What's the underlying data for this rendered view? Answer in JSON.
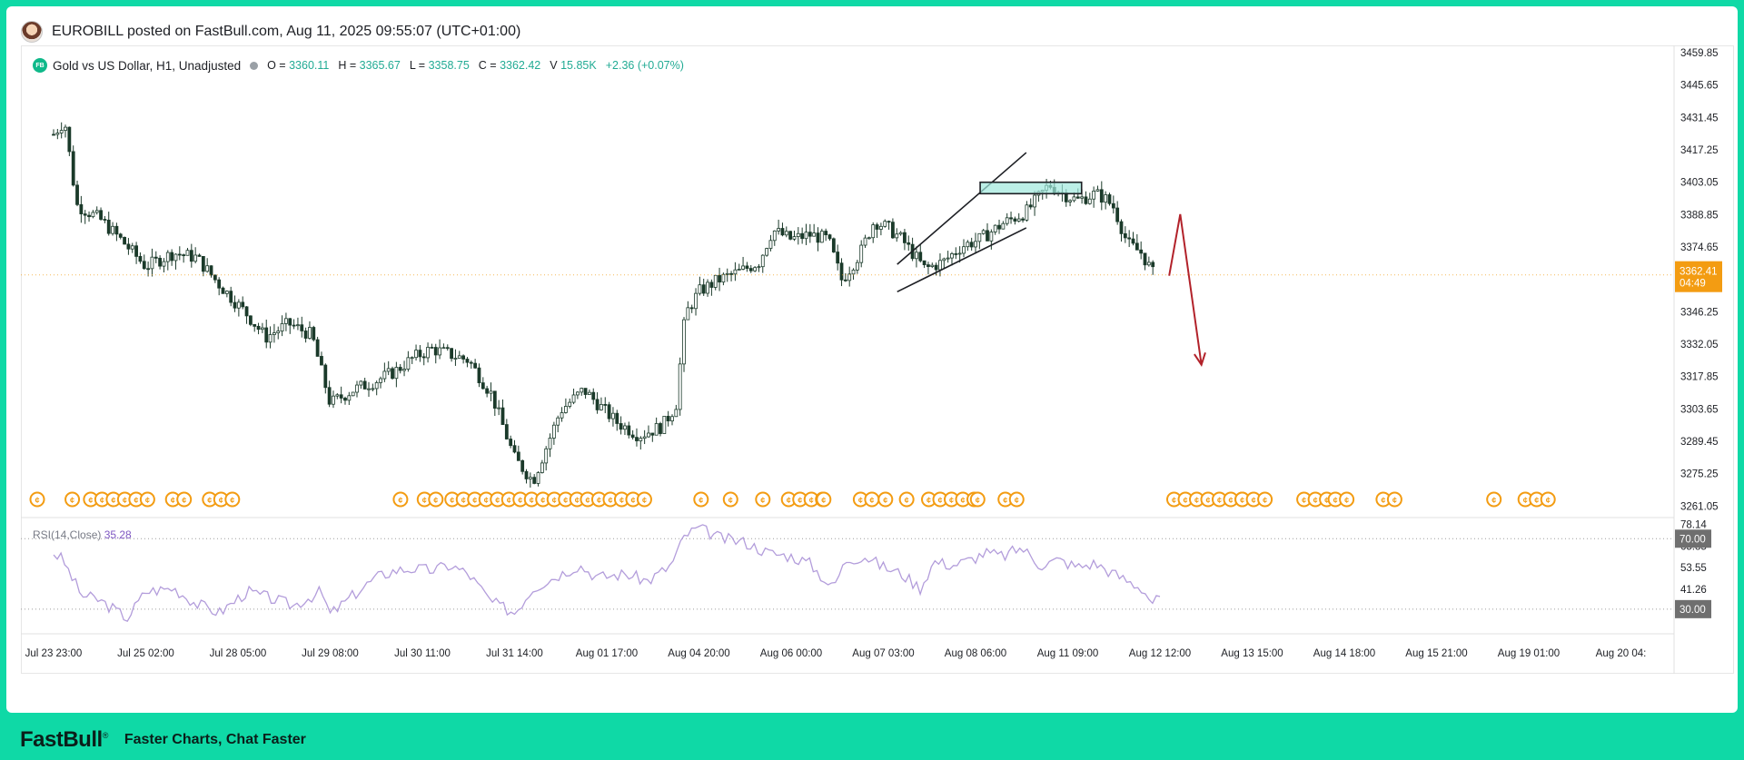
{
  "post": {
    "title": "EUROBILL posted on FastBull.com,   Aug 11, 2025 09:55:07 (UTC+01:00)"
  },
  "legend": {
    "badge": "FB",
    "symbol": "Gold vs US Dollar, H1, Unadjusted",
    "open_label": "O =",
    "open": "3360.11",
    "high_label": "H =",
    "high": "3365.67",
    "low_label": "L =",
    "low": "3358.75",
    "close_label": "C =",
    "close": "3362.42",
    "volume_label": "V",
    "volume": "15.85K",
    "change": "+2.36 (+0.07%)"
  },
  "price_tag": {
    "price": "3362.41",
    "countdown": "04:49"
  },
  "rsi": {
    "label": "RSI(14,Close)",
    "value": "35.28"
  },
  "footer": {
    "brand": "FastBull",
    "reg": "®",
    "slogan": "Faster Charts, Chat Faster"
  },
  "colors": {
    "up": "#ffffff",
    "down": "#1b3a2a",
    "zone": "#9fe8dd",
    "arrow": "#b2222a",
    "rsi_line": "#b39ddb",
    "price_tag": "#f39c12"
  },
  "chart_data": [
    {
      "type": "candlestick",
      "title": "Gold vs US Dollar, H1, Unadjusted",
      "ylim": [
        3256,
        3463
      ],
      "y_ticks": [
        3459.85,
        3445.65,
        3431.45,
        3417.25,
        3403.05,
        3388.85,
        3374.65,
        3346.25,
        3332.05,
        3317.85,
        3303.65,
        3289.45,
        3275.25,
        3261.05
      ],
      "x_labels": [
        "Jul 23 23:00",
        "Jul 25 02:00",
        "Jul 28 05:00",
        "Jul 29 08:00",
        "Jul 30 11:00",
        "Jul 31 14:00",
        "Aug 01 17:00",
        "Aug 04 20:00",
        "Aug 06 00:00",
        "Aug 07 03:00",
        "Aug 08 06:00",
        "Aug 11 09:00",
        "Aug 12 12:00",
        "Aug 13 15:00",
        "Aug 14 18:00",
        "Aug 15 21:00",
        "Aug 19 01:00",
        "Aug 20 04:"
      ],
      "last_price": 3362.41,
      "close_path": [
        [
          0,
          3424
        ],
        [
          0.12,
          3430
        ],
        [
          0.25,
          3393
        ],
        [
          0.5,
          3387
        ],
        [
          0.75,
          3377
        ],
        [
          1,
          3366
        ],
        [
          1.3,
          3372
        ],
        [
          1.55,
          3370
        ],
        [
          1.8,
          3358
        ],
        [
          2.1,
          3345
        ],
        [
          2.3,
          3335
        ],
        [
          2.55,
          3341
        ],
        [
          2.8,
          3336
        ],
        [
          3.0,
          3306
        ],
        [
          3.25,
          3312
        ],
        [
          3.5,
          3316
        ],
        [
          3.7,
          3320
        ],
        [
          3.9,
          3326
        ],
        [
          4.1,
          3330
        ],
        [
          4.5,
          3325
        ],
        [
          4.75,
          3310
        ],
        [
          5.0,
          3282
        ],
        [
          5.2,
          3272
        ],
        [
          5.5,
          3303
        ],
        [
          5.75,
          3312
        ],
        [
          6.1,
          3298
        ],
        [
          6.35,
          3292
        ],
        [
          6.6,
          3296
        ],
        [
          6.75,
          3305
        ],
        [
          6.85,
          3345
        ],
        [
          7.0,
          3355
        ],
        [
          7.2,
          3360
        ],
        [
          7.45,
          3364
        ],
        [
          7.65,
          3368
        ],
        [
          7.8,
          3382
        ],
        [
          8.0,
          3378
        ],
        [
          8.2,
          3380
        ],
        [
          8.4,
          3378
        ],
        [
          8.55,
          3360
        ],
        [
          8.75,
          3372
        ],
        [
          8.9,
          3386
        ],
        [
          9.05,
          3383
        ],
        [
          9.2,
          3378
        ],
        [
          9.45,
          3365
        ],
        [
          9.65,
          3368
        ],
        [
          9.85,
          3375
        ],
        [
          10.05,
          3378
        ],
        [
          10.3,
          3385
        ],
        [
          10.55,
          3390
        ],
        [
          10.8,
          3402
        ],
        [
          10.95,
          3398
        ],
        [
          11.1,
          3395
        ],
        [
          11.3,
          3398
        ],
        [
          11.4,
          3396
        ],
        [
          11.5,
          3392
        ],
        [
          11.65,
          3376
        ],
        [
          11.8,
          3372
        ],
        [
          11.94,
          3362
        ]
      ],
      "annotations": [
        {
          "type": "ascending-channel",
          "from": [
            9.15,
            3367
          ],
          "to": [
            10.55,
            3416
          ],
          "lower_from": [
            9.15,
            3355
          ],
          "lower_to": [
            10.55,
            3383
          ]
        },
        {
          "type": "resistance-zone",
          "y_range": [
            3398,
            3403
          ],
          "x_range": [
            10.05,
            11.15
          ]
        },
        {
          "type": "forecast-arrow",
          "points": [
            [
              12.1,
              3362
            ],
            [
              12.22,
              3389
            ],
            [
              12.45,
              3323
            ]
          ]
        }
      ]
    },
    {
      "type": "line",
      "title": "RSI(14,Close)",
      "ylim": [
        16,
        82
      ],
      "y_ticks": [
        78.14,
        65.85,
        53.55,
        41.26
      ],
      "levels": [
        70.0,
        30.0
      ],
      "last_value": 35.28,
      "path": [
        [
          0,
          62
        ],
        [
          0.1,
          58
        ],
        [
          0.3,
          38
        ],
        [
          0.5,
          35
        ],
        [
          0.8,
          25
        ],
        [
          1.0,
          40
        ],
        [
          1.3,
          42
        ],
        [
          1.55,
          33
        ],
        [
          1.8,
          28
        ],
        [
          2.1,
          40
        ],
        [
          2.3,
          37
        ],
        [
          2.6,
          32
        ],
        [
          2.9,
          40
        ],
        [
          3.0,
          27
        ],
        [
          3.3,
          40
        ],
        [
          3.5,
          48
        ],
        [
          3.7,
          52
        ],
        [
          3.9,
          53
        ],
        [
          4.1,
          52
        ],
        [
          4.3,
          55
        ],
        [
          4.5,
          50
        ],
        [
          4.75,
          34
        ],
        [
          5.0,
          28
        ],
        [
          5.2,
          42
        ],
        [
          5.5,
          50
        ],
        [
          5.7,
          55
        ],
        [
          5.9,
          48
        ],
        [
          6.2,
          50
        ],
        [
          6.45,
          46
        ],
        [
          6.7,
          55
        ],
        [
          6.85,
          72
        ],
        [
          7.0,
          76
        ],
        [
          7.25,
          70
        ],
        [
          7.5,
          68
        ],
        [
          7.75,
          62
        ],
        [
          8.0,
          60
        ],
        [
          8.2,
          56
        ],
        [
          8.45,
          42
        ],
        [
          8.6,
          58
        ],
        [
          8.8,
          60
        ],
        [
          9.0,
          54
        ],
        [
          9.2,
          50
        ],
        [
          9.4,
          42
        ],
        [
          9.55,
          57
        ],
        [
          9.75,
          55
        ],
        [
          9.95,
          58
        ],
        [
          10.1,
          62
        ],
        [
          10.3,
          60
        ],
        [
          10.5,
          65
        ],
        [
          10.7,
          55
        ],
        [
          10.9,
          58
        ],
        [
          11.1,
          54
        ],
        [
          11.3,
          56
        ],
        [
          11.5,
          50
        ],
        [
          11.65,
          46
        ],
        [
          11.8,
          42
        ],
        [
          11.92,
          34
        ],
        [
          12.0,
          36
        ]
      ]
    }
  ]
}
